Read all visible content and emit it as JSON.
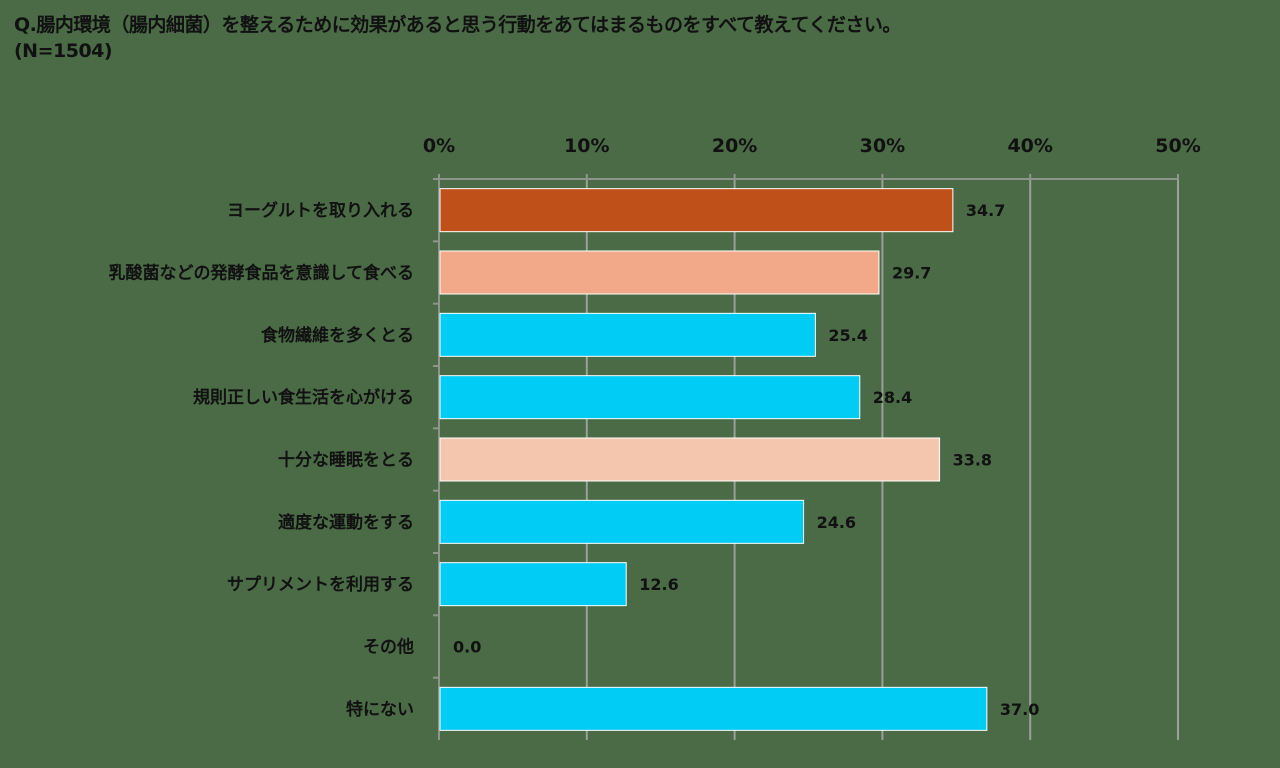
{
  "chart_data": {
    "type": "bar",
    "orientation": "horizontal",
    "title": "Q.腸内環境（腸内細菌）を整えるために効果があると思う行動をあてはまるものをすべて教えてください。",
    "subtitle": "(N=1504)",
    "xlim": [
      0,
      50
    ],
    "x_ticks": [
      "0%",
      "10%",
      "20%",
      "30%",
      "40%",
      "50%"
    ],
    "axis_position": "top",
    "grid": true,
    "categories": [
      "ヨーグルトを取り入れる",
      "乳酸菌などの発酵食品を意識して食べる",
      "食物繊維を多くとる",
      "規則正しい食生活を心がける",
      "十分な睡眠をとる",
      "適度な運動をする",
      "サプリメントを利用する",
      "その他",
      "特にない"
    ],
    "values": [
      34.7,
      29.7,
      25.4,
      28.4,
      33.8,
      24.6,
      12.6,
      0.0,
      37.0
    ],
    "value_labels": [
      "34.7",
      "29.7",
      "25.4",
      "28.4",
      "33.8",
      "24.6",
      "12.6",
      "0.0",
      "37.0"
    ],
    "bar_colors": [
      "#c0501a",
      "#f2a98a",
      "#00ccf5",
      "#00ccf5",
      "#f5c6ae",
      "#00ccf5",
      "#00ccf5",
      "#00ccf5",
      "#00ccf5"
    ]
  }
}
